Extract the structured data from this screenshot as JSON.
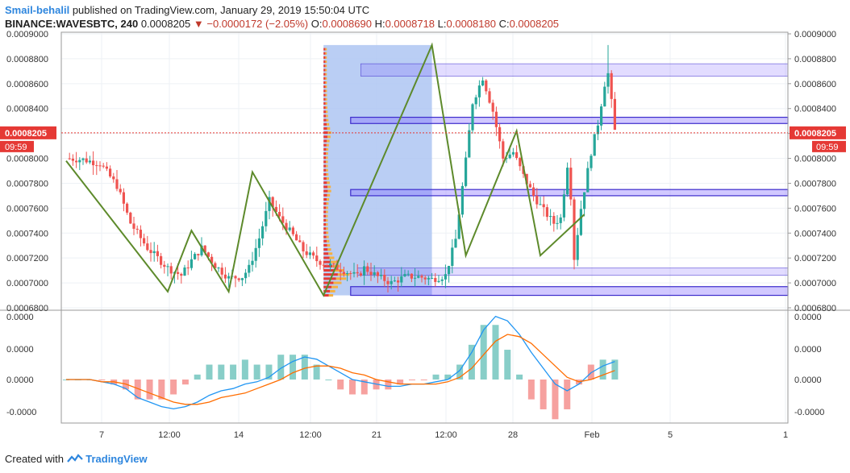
{
  "header": {
    "author": "Smail-behalil",
    "published_text": "published on TradingView.com, January 29, 2019 15:50:04 UTC",
    "symbol": "BINANCE:WAVESBTC, 240",
    "last": "0.0008205",
    "change": "▼ −0.0000172 (−2.05%)",
    "o_label": "O:",
    "o_value": "0.0008690",
    "h_label": "H:",
    "h_value": "0.0008718",
    "l_label": "L:",
    "l_value": "0.0008180",
    "c_label": "C:",
    "c_value": "0.0008205"
  },
  "price_badge": {
    "value": "0.0008205",
    "countdown": "09:59"
  },
  "footer": {
    "created_with": "Created with",
    "brand": "TradingView",
    "logo_icon": "tradingview-logo-icon"
  },
  "colors": {
    "up": "#26a69a",
    "down": "#ef5350",
    "zigzag": "#5d8a2b",
    "macd": "#2196f3",
    "signal": "#ff6d00",
    "zone": "#7b61ff",
    "profile": "#aec6f2"
  },
  "chart_data": [
    {
      "type": "candlestick",
      "title": "",
      "ylim": [
        0.00068,
        0.0009
      ],
      "y_ticks": [
        "0.0009000",
        "0.0008800",
        "0.0008600",
        "0.0008400",
        "0.0008200",
        "0.0008000",
        "0.0007800",
        "0.0007600",
        "0.0007400",
        "0.0007200",
        "0.0007000",
        "0.0006800"
      ],
      "x_ticks": [
        "7",
        "12:00",
        "14",
        "12:00",
        "21",
        "12:00",
        "28",
        "Feb",
        "5",
        "1"
      ],
      "last_price": 0.0008205,
      "close_path": [
        [
          0,
          0.0008
        ],
        [
          5,
          0.000799
        ],
        [
          10,
          0.000796
        ],
        [
          15,
          0.000778
        ],
        [
          19,
          0.000748
        ],
        [
          24,
          0.000728
        ],
        [
          30,
          0.000712
        ],
        [
          34,
          0.000706
        ],
        [
          37,
          0.000718
        ],
        [
          40,
          0.000728
        ],
        [
          44,
          0.000714
        ],
        [
          48,
          0.000704
        ],
        [
          52,
          0.000705
        ],
        [
          54,
          0.000712
        ],
        [
          57,
          0.000736
        ],
        [
          60,
          0.000766
        ],
        [
          63,
          0.000752
        ],
        [
          67,
          0.000738
        ],
        [
          70,
          0.000726
        ],
        [
          74,
          0.000718
        ],
        [
          78,
          0.000714
        ],
        [
          82,
          0.00071
        ],
        [
          86,
          0.000705
        ],
        [
          88,
          0.000712
        ],
        [
          92,
          0.000705
        ],
        [
          96,
          0.0007
        ],
        [
          100,
          0.000705
        ],
        [
          104,
          0.000705
        ],
        [
          108,
          0.000703
        ],
        [
          112,
          0.000706
        ],
        [
          115,
          0.000735
        ],
        [
          118,
          0.000798
        ],
        [
          120,
          0.000845
        ],
        [
          123,
          0.000865
        ],
        [
          126,
          0.000838
        ],
        [
          129,
          0.0008
        ],
        [
          132,
          0.000805
        ],
        [
          135,
          0.000786
        ],
        [
          138,
          0.00077
        ],
        [
          141,
          0.000758
        ],
        [
          144,
          0.000748
        ],
        [
          146,
          0.000752
        ],
        [
          148,
          0.000795
        ],
        [
          149,
          0.00077
        ],
        [
          150,
          0.00072
        ],
        [
          152,
          0.00076
        ],
        [
          155,
          0.000805
        ],
        [
          157,
          0.000828
        ],
        [
          159,
          0.00086
        ],
        [
          160,
          0.000868
        ],
        [
          162,
          0.000822
        ]
      ],
      "high_wick_top": 0.000891,
      "zigzag": [
        [
          0,
          0.000798
        ],
        [
          30,
          0.000693
        ],
        [
          37,
          0.000742
        ],
        [
          48,
          0.000693
        ],
        [
          55,
          0.000789
        ],
        [
          76,
          0.00069
        ],
        [
          108,
          0.000891
        ],
        [
          118,
          0.000722
        ],
        [
          133,
          0.000822
        ],
        [
          140,
          0.000722
        ],
        [
          153,
          0.000755
        ]
      ],
      "zones": [
        {
          "from_bar": 87,
          "low": 0.000866,
          "high": 0.000876,
          "solid": false
        },
        {
          "from_bar": 84,
          "low": 0.000828,
          "high": 0.000833,
          "solid": true
        },
        {
          "from_bar": 84,
          "low": 0.00077,
          "high": 0.000775,
          "solid": true
        },
        {
          "from_bar": 84,
          "low": 0.00069,
          "high": 0.000697,
          "solid": true
        },
        {
          "from_bar": 86,
          "low": 0.000706,
          "high": 0.000712,
          "solid": false
        }
      ],
      "volume_profile": {
        "from_bar": 76,
        "to_bar": 108,
        "low": 0.00069,
        "high": 0.000891,
        "poc": 0.000706
      }
    },
    {
      "type": "line",
      "title": "",
      "y_ticks": [
        "0.0000",
        "0.0000",
        "0.0000",
        "-0.0000"
      ],
      "series": [
        {
          "values": [
            0.0,
            0.0,
            0.0,
            -0.01,
            -0.02,
            -0.04,
            -0.08,
            -0.1,
            -0.12,
            -0.13,
            -0.12,
            -0.1,
            -0.07,
            -0.05,
            -0.04,
            -0.02,
            -0.01,
            0.01,
            0.05,
            0.08,
            0.1,
            0.09,
            0.06,
            0.03,
            0.0,
            -0.01,
            -0.02,
            -0.03,
            -0.03,
            -0.02,
            -0.02,
            -0.01,
            0.0,
            0.04,
            0.12,
            0.22,
            0.28,
            0.26,
            0.2,
            0.12,
            0.05,
            -0.02,
            -0.05,
            -0.02,
            0.03,
            0.06,
            0.08
          ]
        },
        {
          "values": [
            0.0,
            0.0,
            0.0,
            -0.01,
            -0.01,
            -0.02,
            -0.04,
            -0.06,
            -0.08,
            -0.1,
            -0.11,
            -0.11,
            -0.1,
            -0.08,
            -0.07,
            -0.06,
            -0.04,
            -0.02,
            0.0,
            0.03,
            0.05,
            0.06,
            0.06,
            0.05,
            0.03,
            0.02,
            0.0,
            -0.01,
            -0.02,
            -0.02,
            -0.02,
            -0.02,
            -0.01,
            0.01,
            0.05,
            0.11,
            0.17,
            0.2,
            0.19,
            0.16,
            0.11,
            0.06,
            0.01,
            -0.01,
            0.0,
            0.02,
            0.04
          ]
        }
      ],
      "histogram_sign": [
        1,
        1,
        1,
        -1,
        -1,
        -1,
        -1,
        -1,
        -1,
        -1,
        -1,
        1,
        1,
        1,
        1,
        1,
        1,
        1,
        1,
        1,
        1,
        1,
        1,
        -1,
        -1,
        -1,
        -1,
        -1,
        -1,
        -1,
        -1,
        1,
        1,
        1,
        1,
        1,
        1,
        1,
        1,
        -1,
        -1,
        -1,
        -1,
        -1,
        -1,
        1,
        1
      ]
    }
  ]
}
